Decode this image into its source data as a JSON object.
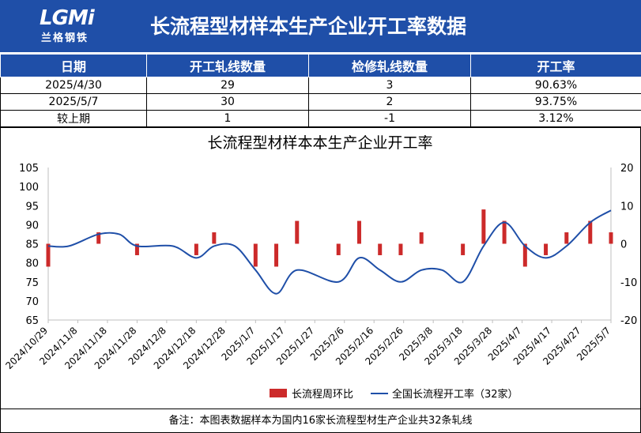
{
  "header": {
    "logo_text": "LGMi",
    "logo_sub": "兰格钢铁",
    "title": "长流程型材样本生产企业开工率数据"
  },
  "table": {
    "headers": [
      "日期",
      "开工轧线数量",
      "检修轧线数量",
      "开工率"
    ],
    "rows": [
      [
        "2025/4/30",
        "29",
        "3",
        "90.63%"
      ],
      [
        "2025/5/7",
        "30",
        "2",
        "93.75%"
      ],
      [
        "较上期",
        "1",
        "-1",
        "3.12%"
      ]
    ]
  },
  "colors": {
    "header_bg": "#1f4fa8",
    "bar": "#cc2a2a",
    "line": "#1f4fa8"
  },
  "chart_data": {
    "type": "bar+line",
    "title": "长流程型材样本本生产企业开工率",
    "x_tick_labels": [
      "2024/10/29",
      "2024/11/8",
      "2024/11/18",
      "2024/11/28",
      "2024/12/8",
      "2024/12/18",
      "2024/12/28",
      "2025/1/7",
      "2025/1/17",
      "2025/1/27",
      "2025/2/6",
      "2025/2/16",
      "2025/2/26",
      "2025/3/8",
      "2025/3/18",
      "2025/3/28",
      "2025/4/7",
      "2025/4/17",
      "2025/4/27",
      "2025/5/7"
    ],
    "left_axis": {
      "ylim": [
        65,
        105
      ],
      "ticks": [
        65,
        70,
        75,
        80,
        85,
        90,
        95,
        100,
        105
      ]
    },
    "right_axis": {
      "ylim": [
        -20,
        20
      ],
      "ticks": [
        -20,
        -10,
        0,
        10,
        20
      ]
    },
    "grid": false,
    "legend_position": "bottom",
    "series": [
      {
        "name": "长流程周环比",
        "kind": "bar",
        "axis": "right",
        "points": [
          [
            "2024/10/29",
            -6.0
          ],
          [
            "2024/11/15",
            3.0
          ],
          [
            "2024/11/28",
            -3.0
          ],
          [
            "2024/12/18",
            -3.0
          ],
          [
            "2024/12/24",
            3.0
          ],
          [
            "2025/1/7",
            -6.0
          ],
          [
            "2025/1/14",
            -6.0
          ],
          [
            "2025/1/21",
            6.0
          ],
          [
            "2025/2/4",
            -3.0
          ],
          [
            "2025/2/11",
            6.0
          ],
          [
            "2025/2/18",
            -3.0
          ],
          [
            "2025/2/25",
            -3.0
          ],
          [
            "2025/3/4",
            3.0
          ],
          [
            "2025/3/18",
            -3.0
          ],
          [
            "2025/3/25",
            9.0
          ],
          [
            "2025/4/1",
            6.0
          ],
          [
            "2025/4/8",
            -6.0
          ],
          [
            "2025/4/15",
            -3.0
          ],
          [
            "2025/4/22",
            3.0
          ],
          [
            "2025/4/30",
            6.0
          ],
          [
            "2025/5/7",
            3.0
          ]
        ]
      },
      {
        "name": "全国长流程开工率（32家）",
        "kind": "line",
        "axis": "left",
        "points": [
          [
            "2024/10/29",
            84.4
          ],
          [
            "2024/11/5",
            84.4
          ],
          [
            "2024/11/15",
            87.5
          ],
          [
            "2024/11/22",
            87.5
          ],
          [
            "2024/11/28",
            84.4
          ],
          [
            "2024/12/10",
            84.4
          ],
          [
            "2024/12/18",
            81.3
          ],
          [
            "2024/12/24",
            84.4
          ],
          [
            "2024/12/31",
            84.4
          ],
          [
            "2025/1/7",
            78.1
          ],
          [
            "2025/1/14",
            71.9
          ],
          [
            "2025/1/21",
            78.1
          ],
          [
            "2025/2/4",
            75.0
          ],
          [
            "2025/2/11",
            81.3
          ],
          [
            "2025/2/18",
            78.1
          ],
          [
            "2025/2/25",
            75.0
          ],
          [
            "2025/3/4",
            78.1
          ],
          [
            "2025/3/11",
            78.1
          ],
          [
            "2025/3/18",
            75.0
          ],
          [
            "2025/3/25",
            84.4
          ],
          [
            "2025/4/1",
            90.6
          ],
          [
            "2025/4/8",
            84.4
          ],
          [
            "2025/4/15",
            81.3
          ],
          [
            "2025/4/22",
            84.4
          ],
          [
            "2025/4/30",
            90.6
          ],
          [
            "2025/5/7",
            93.75
          ]
        ]
      }
    ]
  },
  "footer": {
    "note": "备注：本图表数据样本为国内16家长流程型材生产企业共32条轧线"
  }
}
